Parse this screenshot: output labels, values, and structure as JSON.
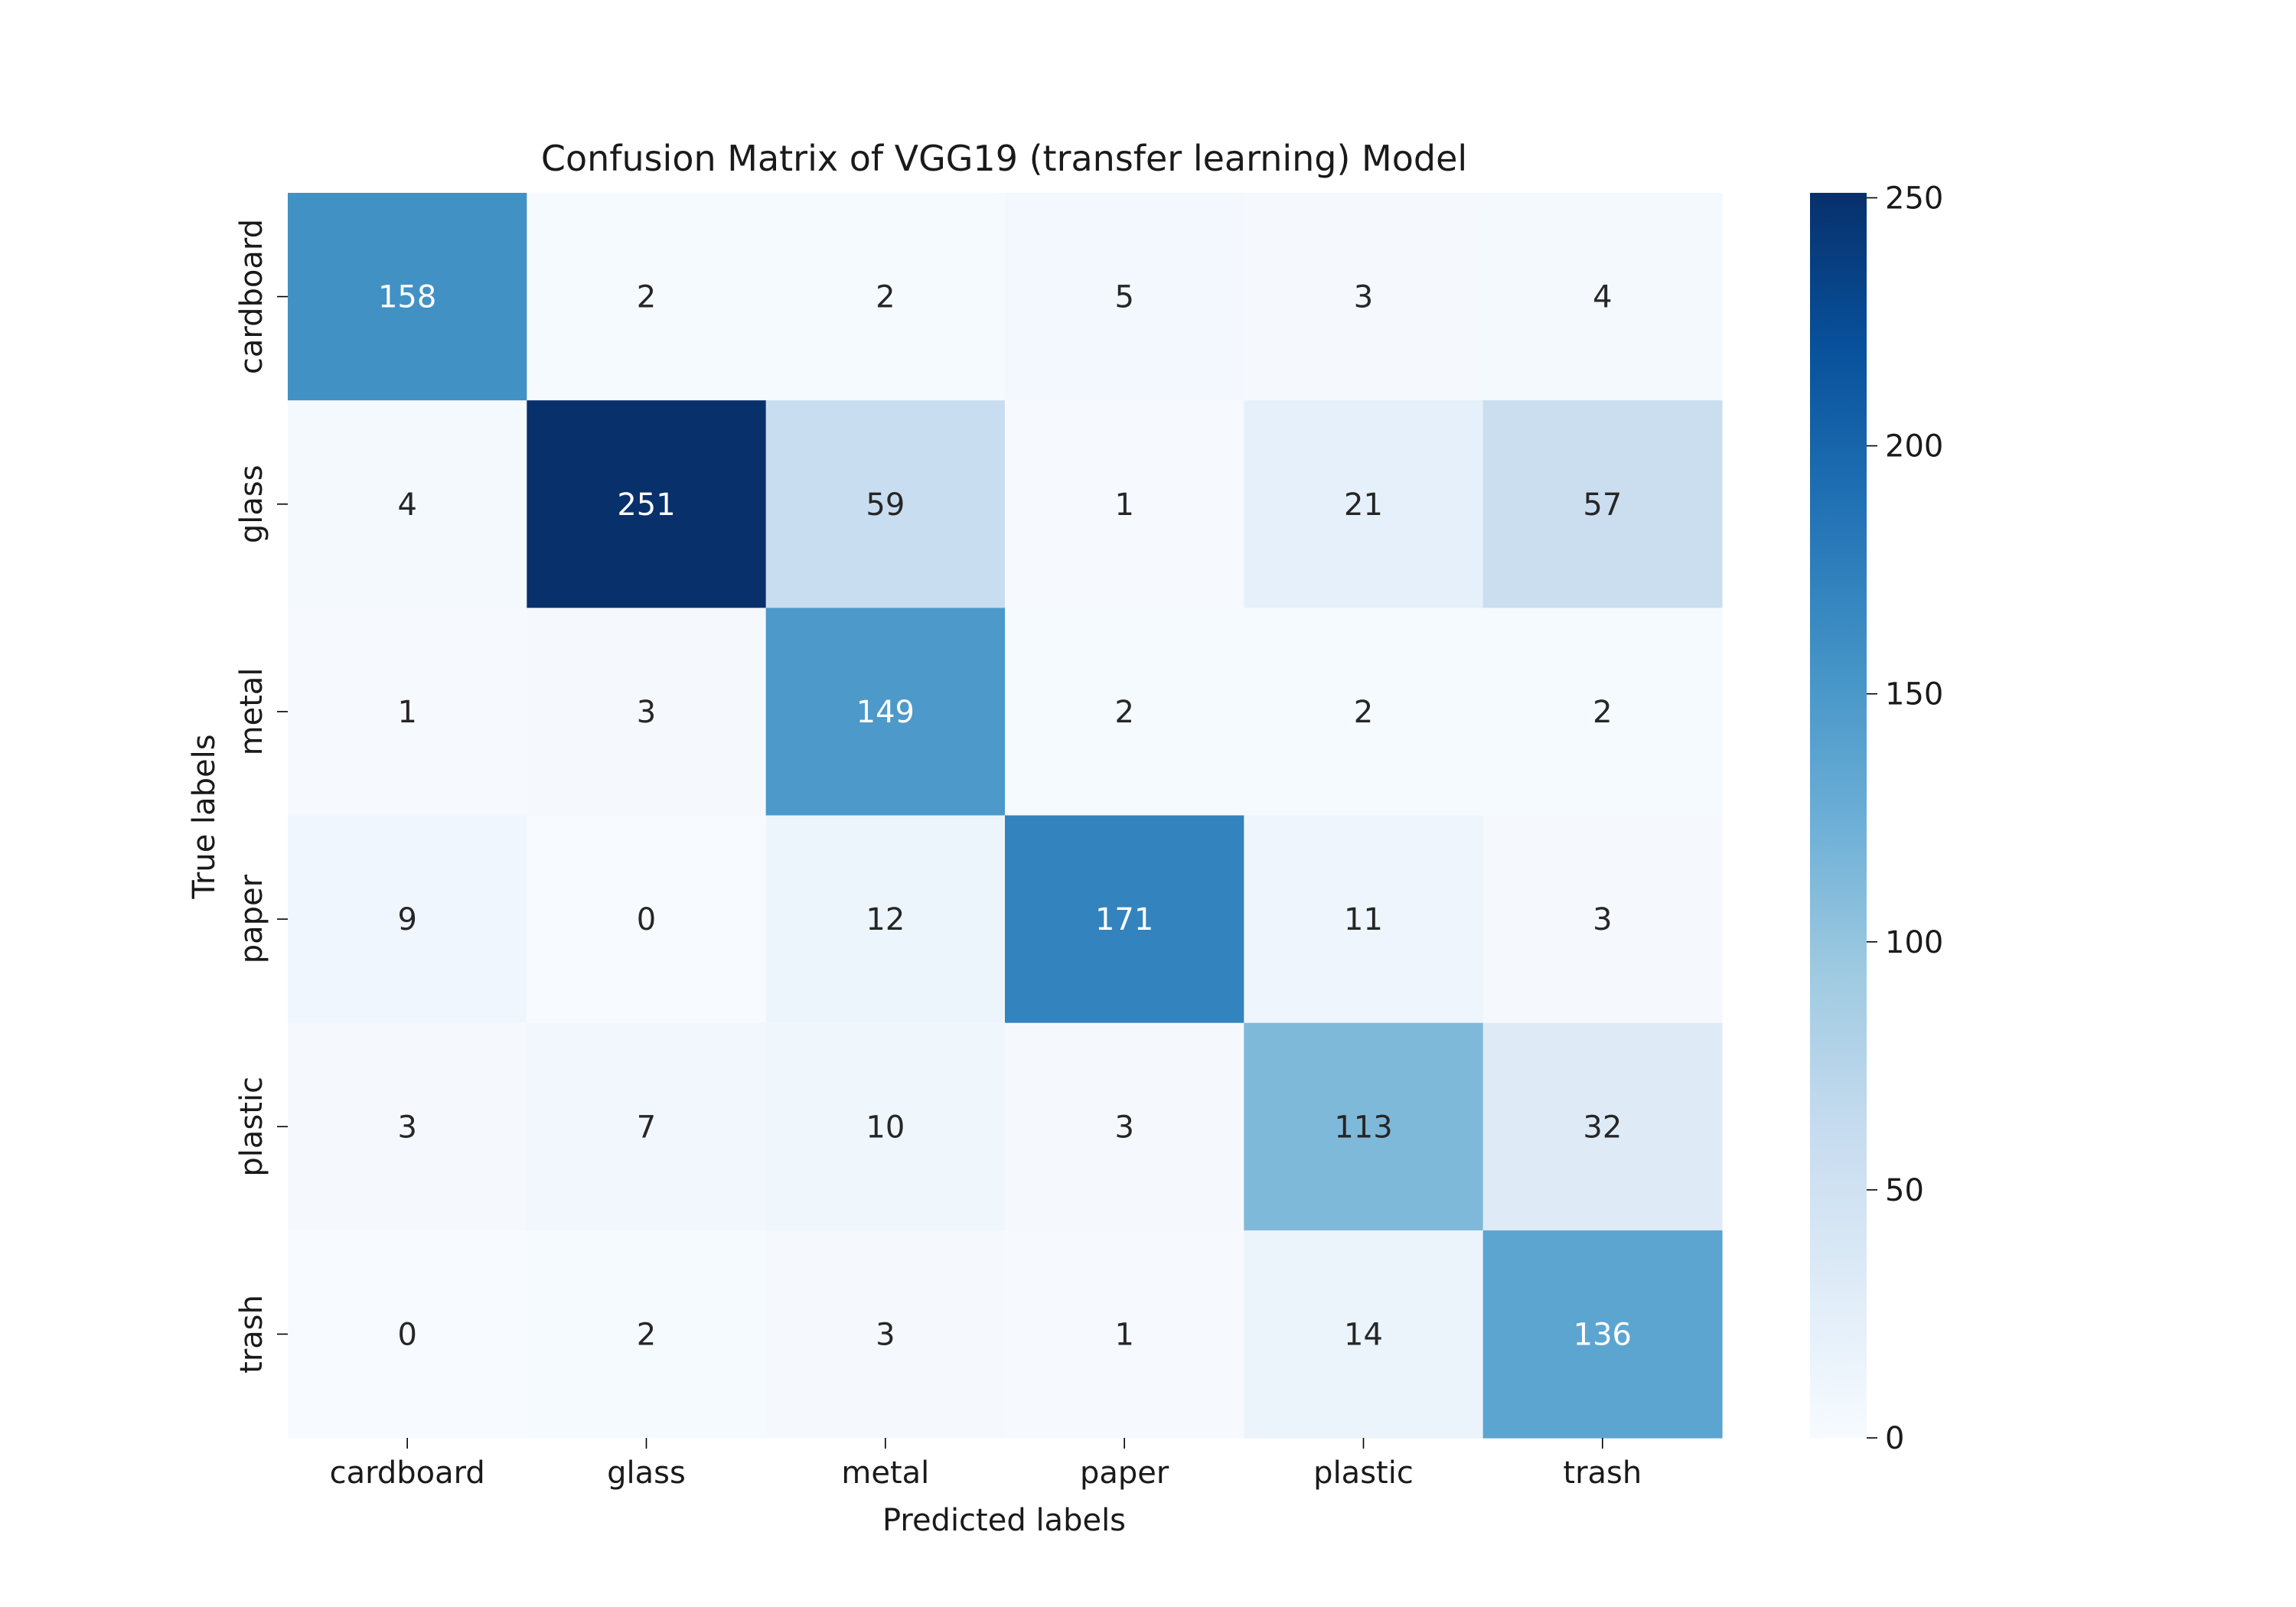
{
  "chart_data": {
    "type": "heatmap",
    "title": "Confusion Matrix of VGG19 (transfer learning) Model",
    "xlabel": "Predicted labels",
    "ylabel": "True labels",
    "x_categories": [
      "cardboard",
      "glass",
      "metal",
      "paper",
      "plastic",
      "trash"
    ],
    "y_categories": [
      "cardboard",
      "glass",
      "metal",
      "paper",
      "plastic",
      "trash"
    ],
    "values": [
      [
        158,
        2,
        2,
        5,
        3,
        4
      ],
      [
        4,
        251,
        59,
        1,
        21,
        57
      ],
      [
        1,
        3,
        149,
        2,
        2,
        2
      ],
      [
        9,
        0,
        12,
        171,
        11,
        3
      ],
      [
        3,
        7,
        10,
        3,
        113,
        32
      ],
      [
        0,
        2,
        3,
        1,
        14,
        136
      ]
    ],
    "colormap": "Blues",
    "colorbar": {
      "range": [
        0,
        251
      ],
      "ticks": [
        0,
        50,
        100,
        150,
        200,
        250
      ],
      "tick_labels": [
        "0",
        "50",
        "100",
        "150",
        "200",
        "250"
      ]
    },
    "annotations": true,
    "grid": false,
    "legend": "colorbar-right"
  }
}
